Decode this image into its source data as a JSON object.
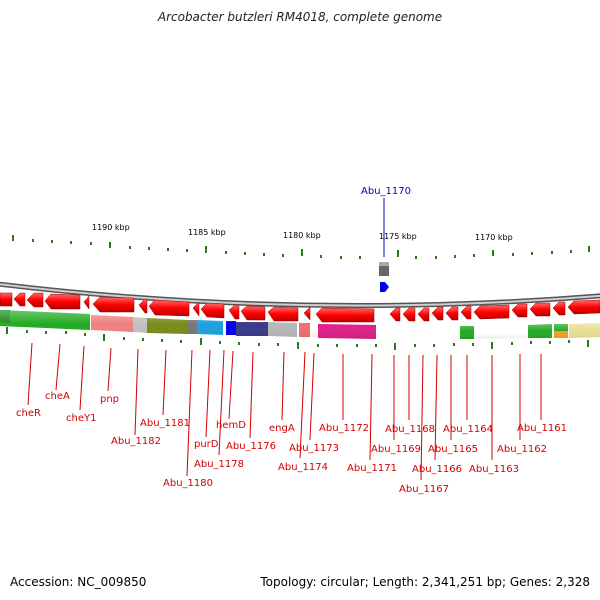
{
  "title": "Arcobacter butzleri RM4018, complete genome",
  "footer": {
    "accession": "Accession: NC_009850",
    "summary": "Topology: circular; Length: 2,341,251 bp; Genes: 2,328"
  },
  "highlight": {
    "label": "Abu_1170",
    "color": "#0000cc"
  },
  "ticks": [
    "1190 kbp",
    "1185 kbp",
    "1180 kbp",
    "1175 kbp",
    "1170 kbp"
  ],
  "genes": [
    "cheR",
    "cheA",
    "cheY1",
    "pnp",
    "Abu_1182",
    "Abu_1181",
    "Abu_1180",
    "purD",
    "Abu_1178",
    "hemD",
    "Abu_1176",
    "engA",
    "Abu_1174",
    "Abu_1173",
    "Abu_1172",
    "Abu_1171",
    "Abu_1169",
    "Abu_1168",
    "Abu_1167",
    "Abu_1166",
    "Abu_1165",
    "Abu_1164",
    "Abu_1163",
    "Abu_1162",
    "Abu_1161"
  ],
  "colors": {
    "gene_arrow": "#ff0000",
    "label": "#d40000",
    "backbone": "#888888",
    "tick": "#2a7a1a"
  }
}
